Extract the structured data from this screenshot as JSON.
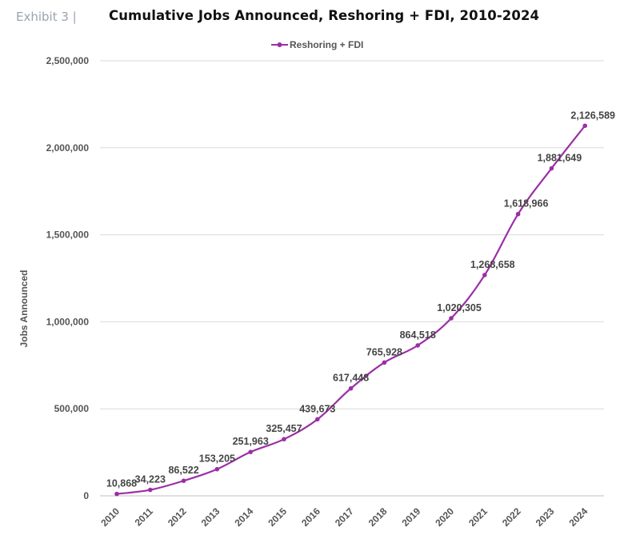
{
  "header": {
    "exhibit": "Exhibit 3 |",
    "title": "Cumulative Jobs Announced, Reshoring + FDI, 2010-2024"
  },
  "chart_data": {
    "type": "line",
    "title": "Cumulative Jobs Announced, Reshoring + FDI, 2010-2024",
    "xlabel": "",
    "ylabel": "Jobs Announced",
    "ylim": [
      0,
      2500000
    ],
    "yticks": [
      0,
      500000,
      1000000,
      1500000,
      2000000,
      2500000
    ],
    "ytick_labels": [
      "0",
      "500,000",
      "1,000,000",
      "1,500,000",
      "2,000,000",
      "2,500,000"
    ],
    "grid": true,
    "legend": "top-center",
    "colors": {
      "series": "#9b2ea6",
      "grid": "#d9d9d9",
      "text": "#555555"
    },
    "categories": [
      "2010",
      "2011",
      "2012",
      "2013",
      "2014",
      "2015",
      "2016",
      "2017",
      "2018",
      "2019",
      "2020",
      "2021",
      "2022",
      "2023",
      "2024"
    ],
    "series": [
      {
        "name": "Reshoring + FDI",
        "values": [
          10868,
          34223,
          86522,
          153205,
          251963,
          325457,
          439673,
          617448,
          765928,
          864518,
          1020305,
          1268658,
          1618966,
          1881649,
          2126589
        ],
        "labels": [
          "10,868",
          "34,223",
          "86,522",
          "153,205",
          "251,963",
          "325,457",
          "439,673",
          "617,448",
          "765,928",
          "864,518",
          "1,020,305",
          "1,268,658",
          "1,618,966",
          "1,881,649",
          "2,126,589"
        ]
      }
    ]
  }
}
